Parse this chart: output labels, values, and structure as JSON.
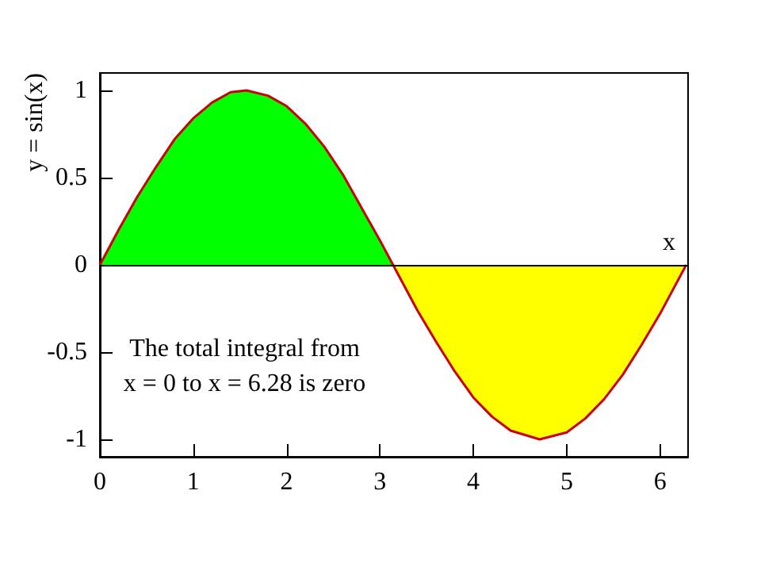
{
  "chart_data": {
    "type": "area",
    "ylabel": "y = sin(x)",
    "xlabel": "x",
    "annotations": [
      "The total integral from\nx = 0 to x = 6.28 is zero"
    ],
    "xlim": [
      0,
      6.3
    ],
    "xticks": [
      0,
      1,
      2,
      3,
      4,
      5,
      6
    ],
    "ylim": [
      -1.1,
      1.1
    ],
    "yticks": [
      -1,
      -0.5,
      0,
      0.5,
      1
    ],
    "grid": false,
    "ref_lines": [
      {
        "axis": "y",
        "value": 0,
        "color": "#000000"
      }
    ],
    "series": [
      {
        "color": "#00ff00",
        "x": [
          0,
          0.2,
          0.4,
          0.6,
          0.8,
          1,
          1.2,
          1.4,
          1.57,
          1.8,
          2,
          2.2,
          2.4,
          2.6,
          2.8,
          3,
          3.14
        ],
        "values": [
          0,
          0.2,
          0.39,
          0.56,
          0.72,
          0.84,
          0.93,
          0.99,
          1,
          0.97,
          0.91,
          0.81,
          0.68,
          0.52,
          0.33,
          0.14,
          0
        ]
      },
      {
        "color": "#ffff00",
        "x": [
          3.14,
          3.4,
          3.6,
          3.8,
          4,
          4.2,
          4.4,
          4.71,
          5,
          5.2,
          5.4,
          5.6,
          5.8,
          6,
          6.28
        ],
        "values": [
          0,
          -0.26,
          -0.44,
          -0.61,
          -0.76,
          -0.87,
          -0.95,
          -1,
          -0.96,
          -0.88,
          -0.77,
          -0.63,
          -0.46,
          -0.28,
          0
        ]
      },
      {
        "type": "line",
        "color": "#cc0000",
        "x": [
          0,
          0.2,
          0.4,
          0.6,
          0.8,
          1,
          1.2,
          1.4,
          1.57,
          1.8,
          2,
          2.2,
          2.4,
          2.6,
          2.8,
          3,
          3.14,
          3.4,
          3.6,
          3.8,
          4,
          4.2,
          4.4,
          4.71,
          5,
          5.2,
          5.4,
          5.6,
          5.8,
          6,
          6.28
        ],
        "values": [
          0,
          0.2,
          0.39,
          0.56,
          0.72,
          0.84,
          0.93,
          0.99,
          1,
          0.97,
          0.91,
          0.81,
          0.68,
          0.52,
          0.33,
          0.14,
          0,
          -0.26,
          -0.44,
          -0.61,
          -0.76,
          -0.87,
          -0.95,
          -1,
          -0.96,
          -0.88,
          -0.77,
          -0.63,
          -0.46,
          -0.28,
          0
        ]
      }
    ]
  }
}
